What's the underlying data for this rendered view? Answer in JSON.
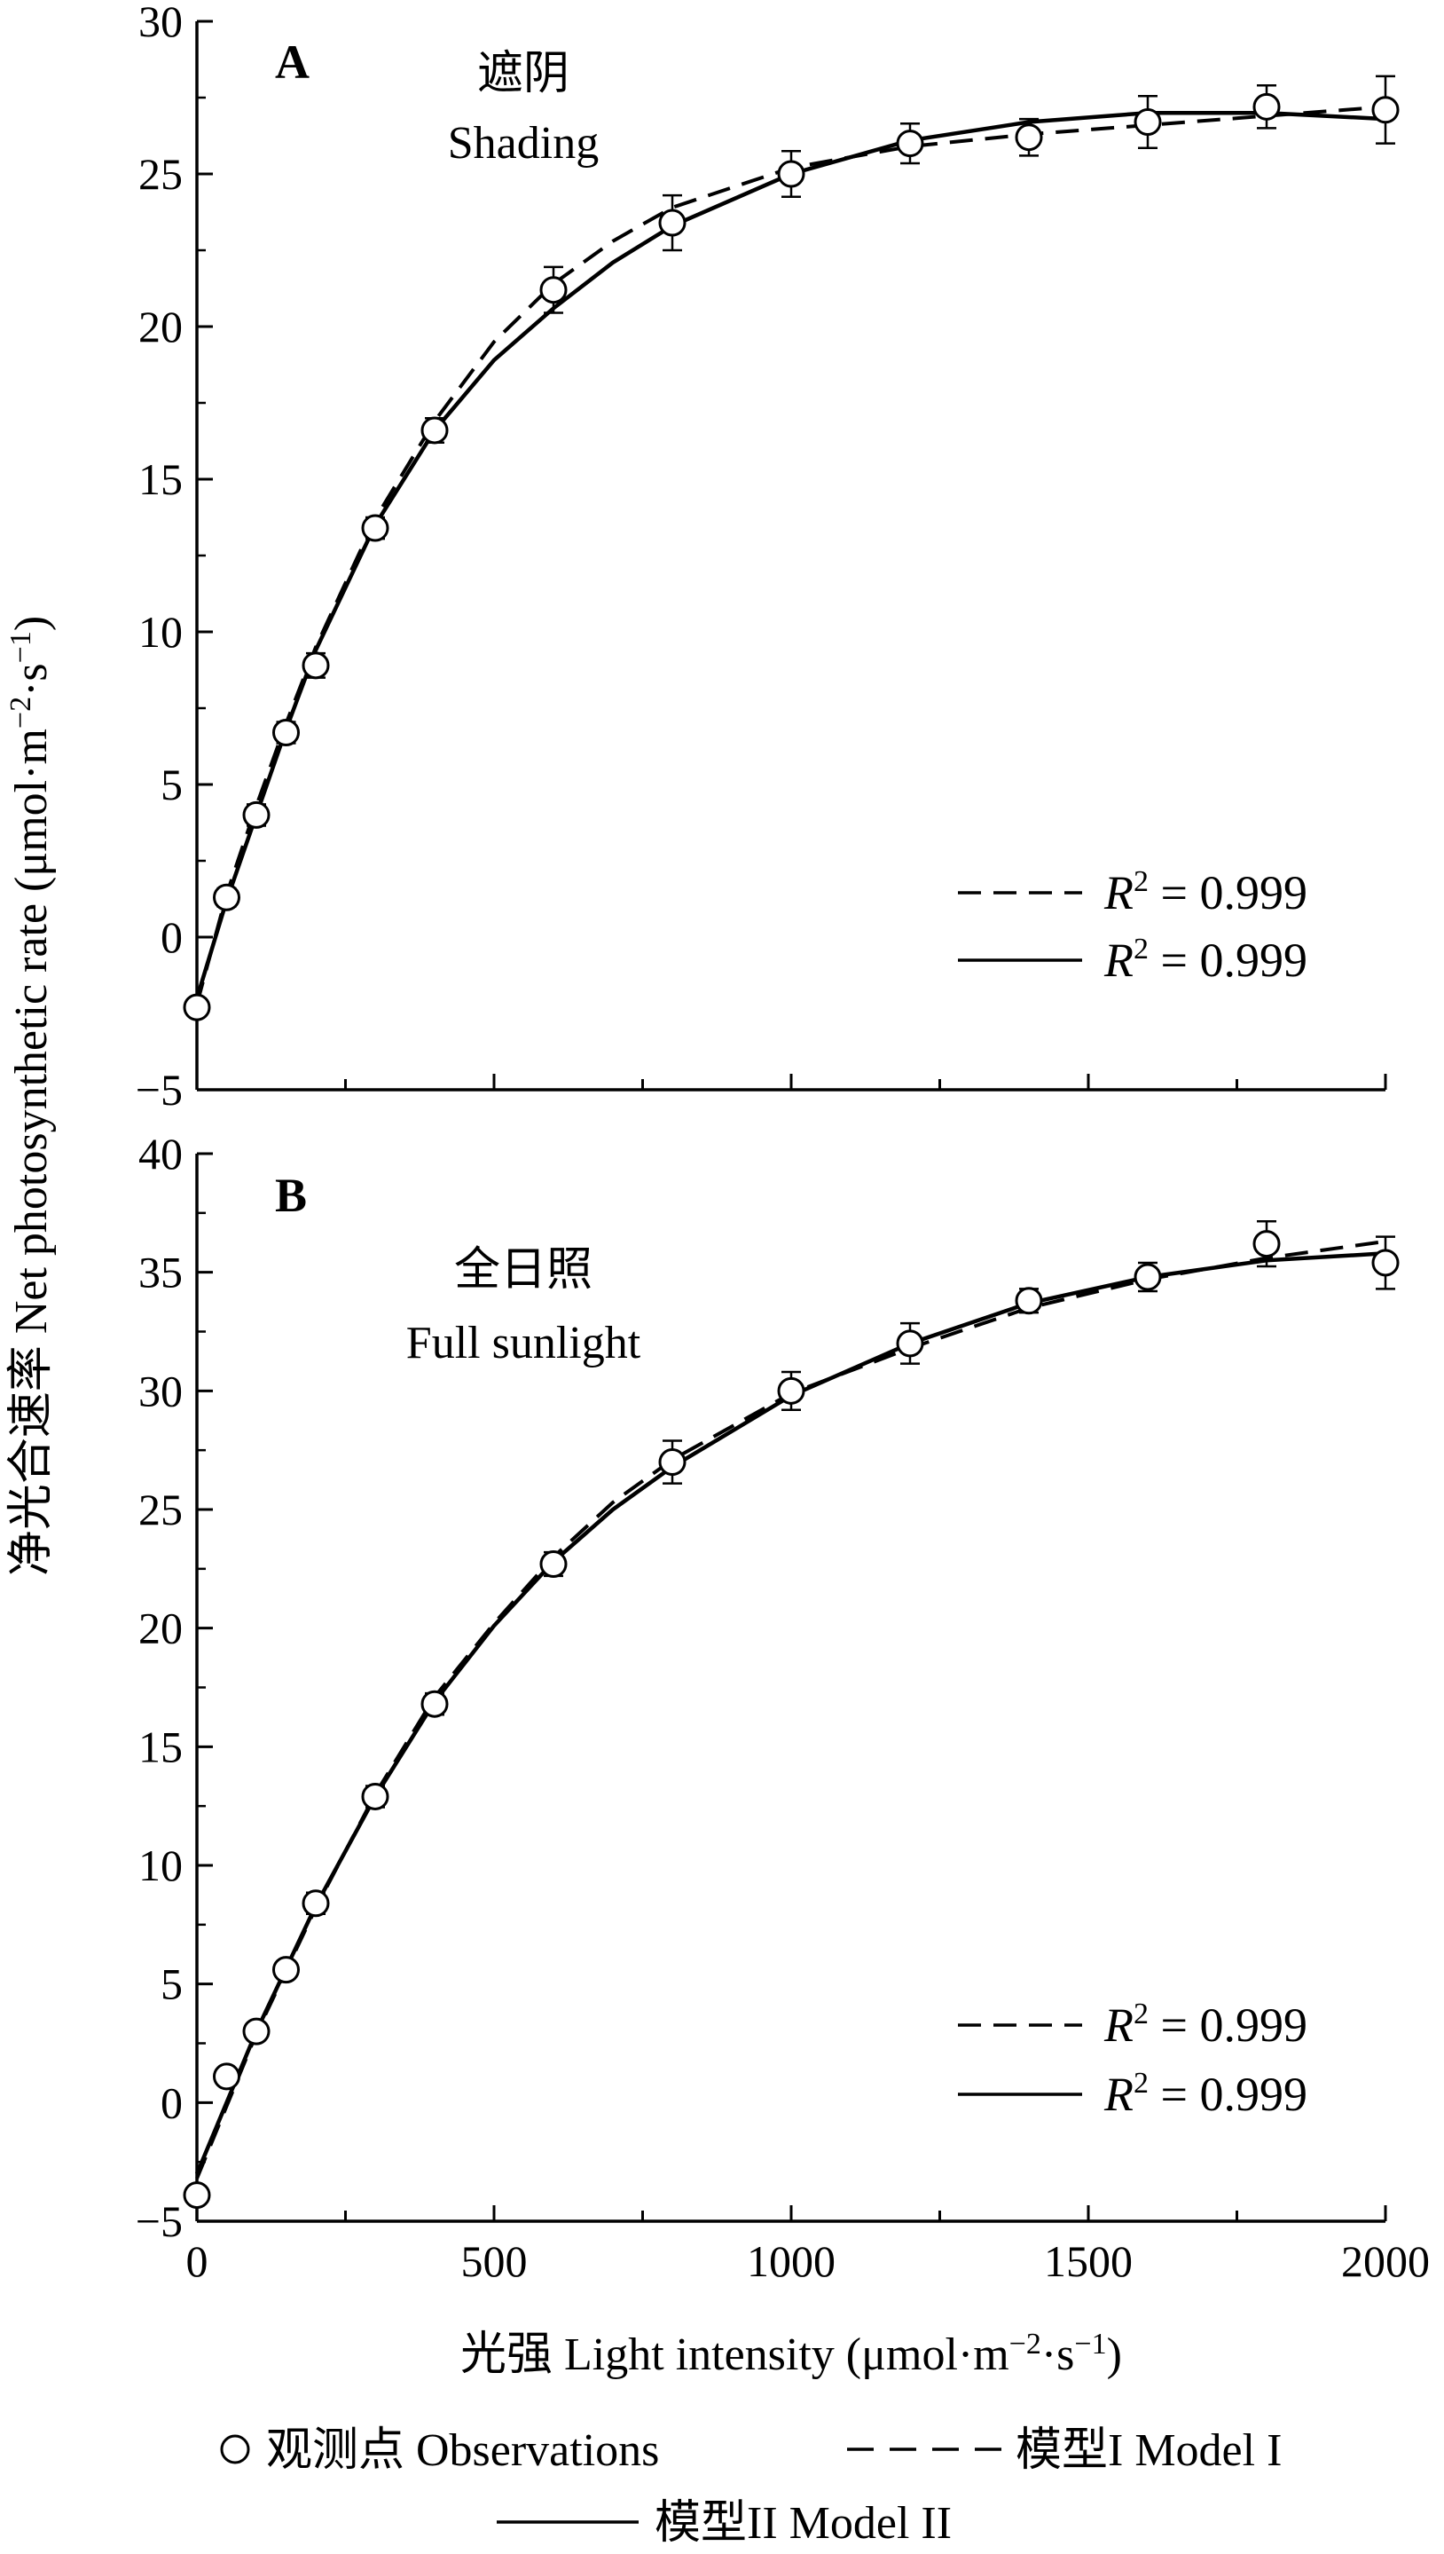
{
  "chart_data": [
    {
      "type": "scatter",
      "panel_label": "A",
      "title_cn": "遮阴",
      "title_en": "Shading",
      "xlim": [
        0,
        2000
      ],
      "ylim": [
        -5,
        30
      ],
      "xticks": [
        0,
        500,
        1000,
        1500,
        2000
      ],
      "yticks": [
        -5,
        0,
        5,
        10,
        15,
        20,
        25,
        30
      ],
      "ytick_labels": [
        "−5",
        "0",
        "5",
        "10",
        "15",
        "20",
        "25",
        "30"
      ],
      "x": [
        0,
        50,
        100,
        150,
        200,
        300,
        400,
        600,
        800,
        1000,
        1200,
        1400,
        1600,
        1800,
        2000
      ],
      "observations": [
        -2.3,
        1.3,
        4.0,
        6.7,
        8.9,
        13.4,
        16.6,
        21.2,
        23.4,
        25.0,
        26.0,
        26.2,
        26.7,
        27.2,
        27.1
      ],
      "error": [
        0.25,
        0.3,
        0.35,
        0.35,
        0.4,
        0.35,
        0.4,
        0.75,
        0.9,
        0.75,
        0.65,
        0.6,
        0.85,
        0.7,
        1.1
      ],
      "series": [
        {
          "name": "模型I Model I",
          "style": "dashed",
          "x": [
            0,
            50,
            100,
            150,
            200,
            300,
            400,
            500,
            600,
            700,
            800,
            1000,
            1200,
            1400,
            1600,
            1800,
            2000
          ],
          "values": [
            -2.2,
            1.4,
            4.3,
            7.0,
            9.5,
            13.7,
            16.9,
            19.5,
            21.4,
            22.8,
            23.9,
            25.2,
            25.9,
            26.3,
            26.6,
            26.9,
            27.2
          ]
        },
        {
          "name": "模型II Model II",
          "style": "solid",
          "x": [
            0,
            50,
            100,
            150,
            200,
            300,
            400,
            500,
            600,
            700,
            800,
            1000,
            1200,
            1400,
            1600,
            1800,
            2000
          ],
          "values": [
            -2.0,
            1.2,
            4.0,
            6.8,
            9.4,
            13.5,
            16.6,
            18.9,
            20.6,
            22.1,
            23.3,
            25.0,
            26.1,
            26.7,
            27.0,
            27.0,
            26.8
          ]
        }
      ],
      "legend_entries": [
        {
          "style": "dashed",
          "r2": "0.999"
        },
        {
          "style": "solid",
          "r2": "0.999"
        }
      ]
    },
    {
      "type": "scatter",
      "panel_label": "B",
      "title_cn": "全日照",
      "title_en": "Full sunlight",
      "xlim": [
        0,
        2000
      ],
      "ylim": [
        -5,
        40
      ],
      "xticks": [
        0,
        500,
        1000,
        1500,
        2000
      ],
      "yticks": [
        -5,
        0,
        5,
        10,
        15,
        20,
        25,
        30,
        35,
        40
      ],
      "ytick_labels": [
        "−5",
        "0",
        "5",
        "10",
        "15",
        "20",
        "25",
        "30",
        "35",
        "40"
      ],
      "x": [
        0,
        50,
        100,
        150,
        200,
        300,
        400,
        600,
        800,
        1000,
        1200,
        1400,
        1600,
        1800,
        2000
      ],
      "observations": [
        -3.9,
        1.1,
        3.0,
        5.6,
        8.4,
        12.9,
        16.8,
        22.7,
        27.0,
        30.0,
        32.0,
        33.8,
        34.8,
        36.2,
        35.4
      ],
      "error": [
        0.25,
        0.3,
        0.35,
        0.35,
        0.45,
        0.45,
        0.45,
        0.5,
        0.9,
        0.8,
        0.85,
        0.5,
        0.6,
        0.95,
        1.1
      ],
      "series": [
        {
          "name": "模型I Model I",
          "style": "dashed",
          "x": [
            0,
            100,
            200,
            300,
            400,
            500,
            600,
            700,
            800,
            1000,
            1200,
            1400,
            1600,
            1800,
            2000
          ],
          "values": [
            -3.2,
            2.9,
            8.2,
            13.0,
            17.1,
            20.2,
            23.0,
            25.3,
            27.1,
            29.9,
            31.8,
            33.5,
            34.7,
            35.6,
            36.3
          ]
        },
        {
          "name": "模型II Model II",
          "style": "solid",
          "x": [
            0,
            100,
            200,
            300,
            400,
            500,
            600,
            700,
            800,
            1000,
            1200,
            1400,
            1600,
            1800,
            2000
          ],
          "values": [
            -3.0,
            3.0,
            8.3,
            12.9,
            16.9,
            20.1,
            22.8,
            25.0,
            26.8,
            29.8,
            32.0,
            33.7,
            34.8,
            35.5,
            35.8
          ]
        }
      ],
      "legend_entries": [
        {
          "style": "dashed",
          "r2": "0.999"
        },
        {
          "style": "solid",
          "r2": "0.999"
        }
      ]
    }
  ],
  "labels": {
    "ylabel": "净光合速率 Net photosynthetic rate (μmol·m",
    "ylabel_sup1": "−2",
    "ylabel_mid": "·s",
    "ylabel_sup2": "−1",
    "ylabel_end": ")",
    "xlabel": "光强 Light intensity (μmol·m",
    "xlabel_sup1": "−2",
    "xlabel_mid": "·s",
    "xlabel_sup2": "−1",
    "xlabel_end": ")",
    "r2_symbol": "R",
    "r2_exp": "2",
    "r2_eq": " = "
  },
  "legend": {
    "observations": "观测点 Observations",
    "model1": "模型I Model I",
    "model2": "模型II Model II"
  }
}
